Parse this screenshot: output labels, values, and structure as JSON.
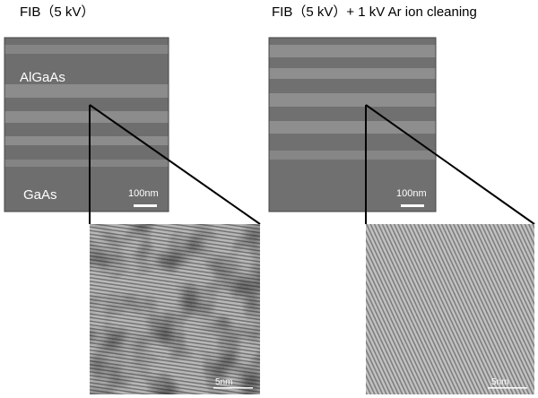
{
  "panels": [
    {
      "title": "FIB（5 kV）",
      "layer_top": "AlGaAs",
      "layer_bottom": "GaAs",
      "scale_bar": "100nm",
      "zoom_scale_bar": "5nm"
    },
    {
      "title": "FIB（5 kV）+ 1 kV Ar ion cleaning",
      "scale_bar": "100nm",
      "zoom_scale_bar": "5nm"
    }
  ]
}
